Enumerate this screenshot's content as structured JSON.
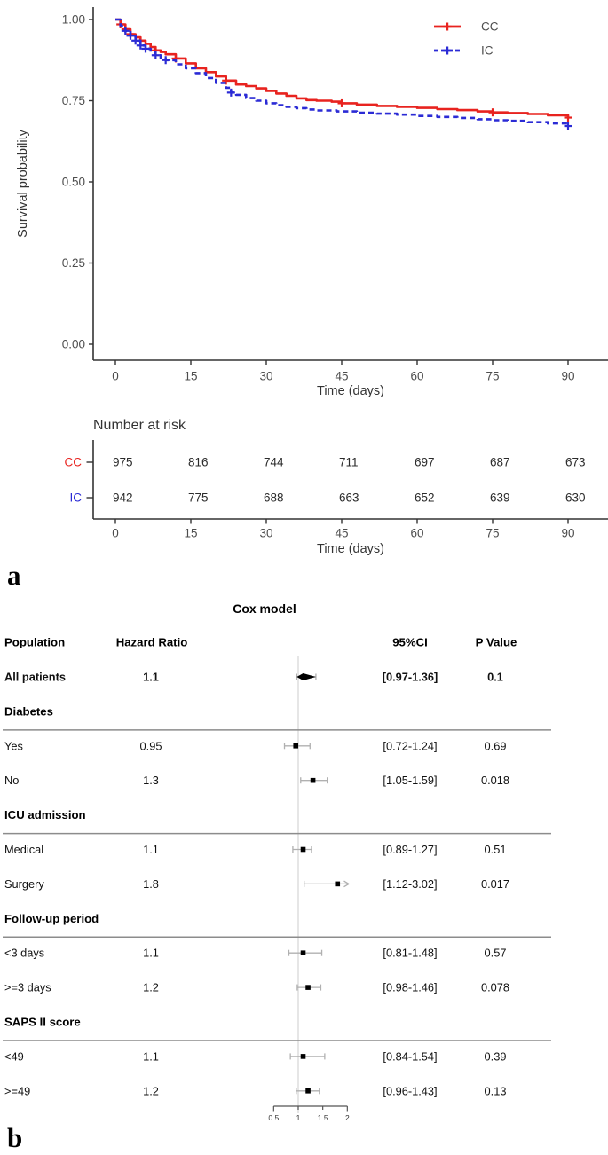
{
  "panel_a": {
    "panel_label": "a",
    "risk_table": {
      "title": "Number at risk",
      "xlabel": "Time (days)",
      "time_points": [
        0,
        15,
        30,
        45,
        60,
        75,
        90
      ],
      "rows": [
        {
          "label": "CC",
          "color": "#e8231f",
          "values": [
            "975",
            "816",
            "744",
            "711",
            "697",
            "687",
            "673"
          ]
        },
        {
          "label": "IC",
          "color": "#2b2bd5",
          "values": [
            "942",
            "775",
            "688",
            "663",
            "652",
            "639",
            "630"
          ]
        }
      ]
    }
  },
  "panel_b": {
    "panel_label": "b"
  },
  "chart_data": [
    {
      "type": "line",
      "name": "kaplan-meier-survival",
      "xlabel": "Time (days)",
      "ylabel": "Survival probability",
      "xlim": [
        0,
        97
      ],
      "ylim": [
        0,
        1.0
      ],
      "xticks": [
        0,
        15,
        30,
        45,
        60,
        75,
        90
      ],
      "ytick_values": [
        1.0,
        0.75,
        0.5,
        0.25,
        0.0
      ],
      "ytick_labels": [
        "1.00",
        "0.75",
        "0.50",
        "0.25",
        "0.00"
      ],
      "grid": false,
      "legend_position": "top-right",
      "series": [
        {
          "name": "CC",
          "color": "#e8231f",
          "style": "solid",
          "x": [
            0,
            1,
            2,
            3,
            4,
            5,
            6,
            7,
            8,
            9,
            10,
            12,
            14,
            16,
            18,
            20,
            22,
            24,
            26,
            28,
            30,
            32,
            34,
            36,
            38,
            40,
            43,
            45,
            48,
            52,
            56,
            60,
            64,
            68,
            72,
            75,
            78,
            82,
            86,
            90
          ],
          "y": [
            1.0,
            0.985,
            0.97,
            0.955,
            0.945,
            0.935,
            0.925,
            0.915,
            0.905,
            0.9,
            0.893,
            0.88,
            0.865,
            0.85,
            0.838,
            0.825,
            0.812,
            0.8,
            0.795,
            0.788,
            0.78,
            0.772,
            0.765,
            0.757,
            0.752,
            0.75,
            0.747,
            0.742,
            0.738,
            0.734,
            0.731,
            0.728,
            0.724,
            0.721,
            0.717,
            0.714,
            0.712,
            0.709,
            0.705,
            0.698
          ],
          "censor_days": [
            1,
            2,
            3,
            5,
            8,
            12,
            22,
            45,
            75,
            90
          ]
        },
        {
          "name": "IC",
          "color": "#2b2bd5",
          "style": "dashed",
          "x": [
            0,
            1,
            2,
            3,
            4,
            5,
            6,
            7,
            8,
            9,
            10,
            12,
            14,
            16,
            18,
            20,
            22,
            23,
            24,
            26,
            28,
            30,
            32,
            34,
            36,
            38,
            40,
            44,
            48,
            52,
            56,
            60,
            64,
            68,
            72,
            75,
            78,
            82,
            86,
            90
          ],
          "y": [
            1.0,
            0.98,
            0.965,
            0.95,
            0.935,
            0.92,
            0.91,
            0.9,
            0.89,
            0.882,
            0.875,
            0.862,
            0.85,
            0.835,
            0.82,
            0.805,
            0.79,
            0.775,
            0.768,
            0.758,
            0.75,
            0.742,
            0.736,
            0.731,
            0.727,
            0.723,
            0.72,
            0.717,
            0.713,
            0.71,
            0.707,
            0.703,
            0.7,
            0.697,
            0.693,
            0.69,
            0.688,
            0.684,
            0.68,
            0.672
          ],
          "censor_days": [
            2,
            3,
            4,
            5,
            6,
            8,
            10,
            23,
            90
          ]
        }
      ]
    },
    {
      "type": "forest",
      "name": "cox-model-forest",
      "title": "Cox model",
      "columns": [
        "Population",
        "Hazard Ratio",
        "95%CI",
        "P Value"
      ],
      "axis_ticks": [
        0.5,
        1,
        1.5,
        2
      ],
      "axis_tick_labels": [
        "0.5",
        "1",
        "1.5",
        "2"
      ],
      "ref_line": 1,
      "xlim": [
        0.5,
        2
      ],
      "rows": [
        {
          "kind": "row",
          "bold": true,
          "marker": "diamond",
          "label": "All patients",
          "hr": 1.1,
          "hr_text": "1.1",
          "ci_low": 0.97,
          "ci_high": 1.36,
          "ci_text": "[0.97-1.36]",
          "p": "0.1"
        },
        {
          "kind": "section",
          "label": "Diabetes"
        },
        {
          "kind": "row",
          "label": "Yes",
          "hr": 0.95,
          "hr_text": "0.95",
          "ci_low": 0.72,
          "ci_high": 1.24,
          "ci_text": "[0.72-1.24]",
          "p": "0.69"
        },
        {
          "kind": "row",
          "label": "No",
          "hr": 1.3,
          "hr_text": "1.3",
          "ci_low": 1.05,
          "ci_high": 1.59,
          "ci_text": "[1.05-1.59]",
          "p": "0.018"
        },
        {
          "kind": "section",
          "label": "ICU admission"
        },
        {
          "kind": "row",
          "label": "Medical",
          "hr": 1.1,
          "hr_text": "1.1",
          "ci_low": 0.89,
          "ci_high": 1.27,
          "ci_text": "[0.89-1.27]",
          "p": "0.51"
        },
        {
          "kind": "row",
          "label": "Surgery",
          "hr": 1.8,
          "hr_text": "1.8",
          "ci_low": 1.12,
          "ci_high": 3.02,
          "ci_text": "[1.12-3.02]",
          "p": "0.017",
          "clip_high": true
        },
        {
          "kind": "section",
          "label": "Follow-up period"
        },
        {
          "kind": "row",
          "label": "<3 days",
          "hr": 1.1,
          "hr_text": "1.1",
          "ci_low": 0.81,
          "ci_high": 1.48,
          "ci_text": "[0.81-1.48]",
          "p": "0.57"
        },
        {
          "kind": "row",
          "label": ">=3 days",
          "hr": 1.2,
          "hr_text": "1.2",
          "ci_low": 0.98,
          "ci_high": 1.46,
          "ci_text": "[0.98-1.46]",
          "p": "0.078"
        },
        {
          "kind": "section",
          "label": "SAPS II score"
        },
        {
          "kind": "row",
          "label": "<49",
          "hr": 1.1,
          "hr_text": "1.1",
          "ci_low": 0.84,
          "ci_high": 1.54,
          "ci_text": "[0.84-1.54]",
          "p": "0.39"
        },
        {
          "kind": "row",
          "label": ">=49",
          "hr": 1.2,
          "hr_text": "1.2",
          "ci_low": 0.96,
          "ci_high": 1.43,
          "ci_text": "[0.96-1.43]",
          "p": "0.13"
        }
      ]
    }
  ],
  "colors": {
    "cc": "#e8231f",
    "ic": "#2b2bd5",
    "axis": "#333333",
    "tick_text": "#4d4d4d",
    "ref_line": "#d8d8d8",
    "whisker": "#b0b0b0",
    "divider": "#8c8c8c",
    "marker": "#000000"
  }
}
